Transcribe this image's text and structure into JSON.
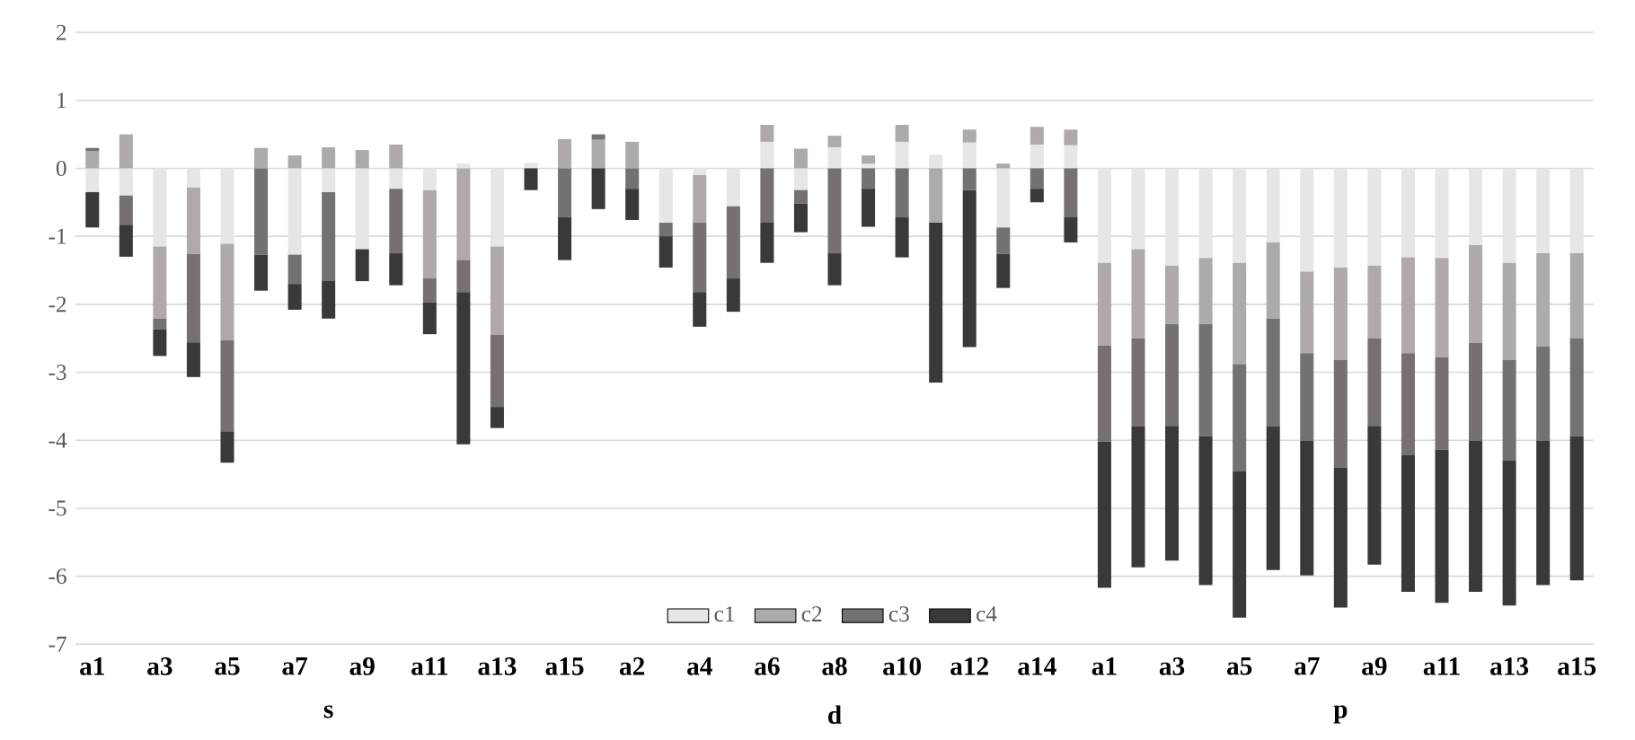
{
  "chart_data": {
    "type": "bar",
    "stacked": true,
    "categories": [
      "a1",
      null,
      "a3",
      null,
      "a5",
      null,
      "a7",
      null,
      "a9",
      null,
      "a11",
      null,
      "a13",
      null,
      "a15",
      null,
      "a2",
      null,
      "a4",
      null,
      "a6",
      null,
      "a8",
      null,
      "a10",
      null,
      "a12",
      null,
      "a14",
      null,
      "a1",
      null,
      "a3",
      null,
      "a5",
      null,
      "a7",
      null,
      "a9",
      null,
      "a11",
      null,
      "a13",
      null,
      "a15"
    ],
    "series": [
      {
        "name": "c1",
        "color": "#e7e6e6",
        "values": [
          -0.35,
          -0.4,
          -1.15,
          -0.28,
          -1.11,
          0,
          -1.27,
          -0.35,
          -1.19,
          -0.3,
          -0.32,
          0.07,
          -1.15,
          0.08,
          0,
          0,
          0,
          -0.8,
          -0.1,
          -0.56,
          0.39,
          -0.32,
          0.31,
          0.07,
          0.39,
          0.2,
          0.38,
          -0.87,
          0.35,
          0.34,
          -1.39,
          -1.19,
          -1.43,
          -1.32,
          -1.39,
          -1.09,
          -1.52,
          -1.46,
          -1.43,
          -1.31,
          -1.32,
          -1.13,
          -1.39,
          -1.25,
          -1.25
        ]
      },
      {
        "name": "c2",
        "color": "#aeaaaa",
        "values": [
          0.25,
          0.5,
          -1.06,
          -0.98,
          -1.42,
          0.3,
          0.19,
          0.31,
          0.27,
          0.35,
          -1.3,
          -1.35,
          -1.3,
          0,
          0.43,
          0.42,
          0.39,
          0,
          -0.7,
          0,
          0.25,
          0.29,
          0.17,
          0.12,
          0.25,
          -0.8,
          0.19,
          0.07,
          0.26,
          0.23,
          -1.22,
          -1.31,
          -0.86,
          -0.97,
          -1.49,
          -1.12,
          -1.2,
          -1.36,
          -1.07,
          -1.41,
          -1.46,
          -1.44,
          -1.43,
          -1.37,
          -1.25
        ]
      },
      {
        "name": "c3",
        "color": "#757171",
        "values": [
          0.05,
          -0.43,
          -0.16,
          -1.3,
          -1.34,
          -1.27,
          -0.43,
          -1.3,
          0,
          -0.95,
          -0.35,
          -0.47,
          -1.06,
          0,
          -0.72,
          0.08,
          -0.3,
          -0.2,
          -1.02,
          -1.06,
          -0.8,
          -0.2,
          -1.25,
          -0.3,
          -0.72,
          0,
          -0.32,
          -0.39,
          -0.3,
          -0.72,
          -1.41,
          -1.3,
          -1.5,
          -1.65,
          -1.58,
          -1.59,
          -1.29,
          -1.58,
          -1.29,
          -1.5,
          -1.36,
          -1.44,
          -1.48,
          -1.39,
          -1.44
        ]
      },
      {
        "name": "c4",
        "color": "#3b3838",
        "values": [
          -0.52,
          -0.47,
          -0.39,
          -0.51,
          -0.46,
          -0.53,
          -0.38,
          -0.56,
          -0.47,
          -0.47,
          -0.47,
          -2.24,
          -0.31,
          -0.32,
          -0.63,
          -0.6,
          -0.46,
          -0.46,
          -0.51,
          -0.49,
          -0.59,
          -0.42,
          -0.47,
          -0.56,
          -0.59,
          -2.35,
          -2.31,
          -0.5,
          -0.2,
          -0.37,
          -2.15,
          -2.07,
          -1.98,
          -2.19,
          -2.15,
          -2.11,
          -1.98,
          -2.06,
          -2.04,
          -2.01,
          -2.25,
          -2.22,
          -2.13,
          -2.12,
          -2.12
        ]
      }
    ],
    "ylim": [
      -7,
      2
    ],
    "yticks": [
      -7,
      -6,
      -5,
      -4,
      -3,
      -2,
      -1,
      0,
      1,
      2
    ],
    "grid": "y",
    "legend": "bottom",
    "annotations": [
      "s",
      "d",
      "p"
    ]
  }
}
